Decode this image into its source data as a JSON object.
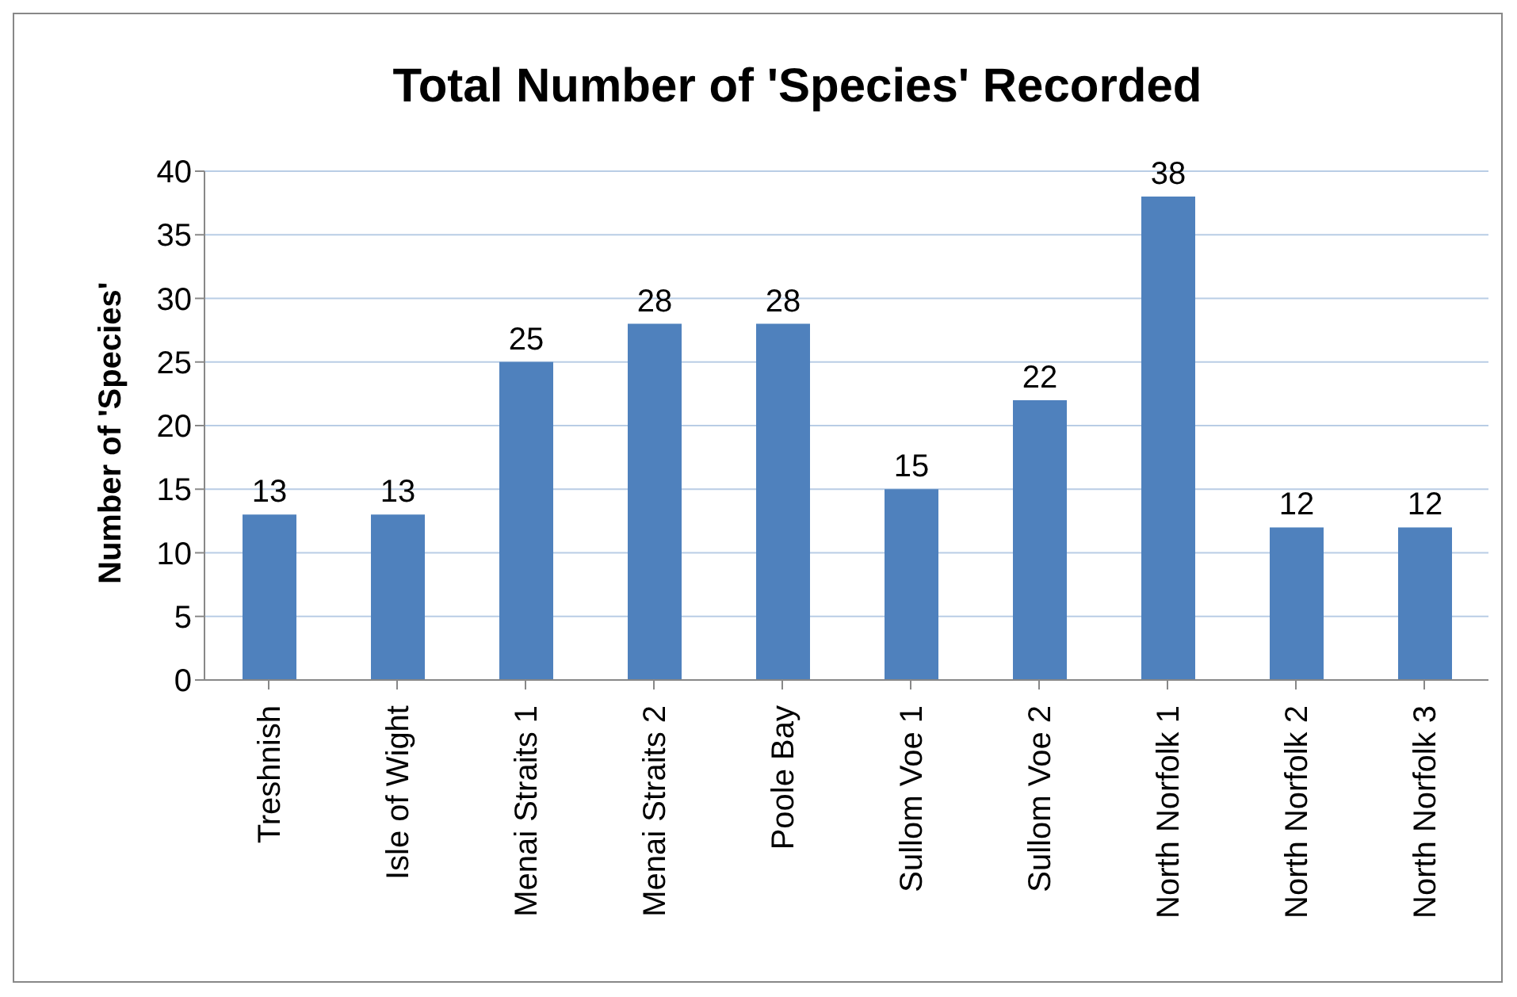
{
  "chart_data": {
    "type": "bar",
    "title": "Total Number of 'Species' Recorded",
    "ylabel": "Number of 'Species'",
    "categories": [
      "Treshnish",
      "Isle of Wight",
      "Menai Straits 1",
      "Menai Straits 2",
      "Poole Bay",
      "Sullom Voe 1",
      "Sullom Voe 2",
      "North Norfolk 1",
      "North Norfolk 2",
      "North Norfolk 3"
    ],
    "values": [
      13,
      13,
      25,
      28,
      28,
      15,
      22,
      38,
      12,
      12
    ],
    "color": "#4f81bd",
    "ylim": [
      0,
      40
    ],
    "yticks": [
      0,
      5,
      10,
      15,
      20,
      25,
      30,
      35,
      40
    ],
    "grid": "y",
    "data_labels": true
  }
}
